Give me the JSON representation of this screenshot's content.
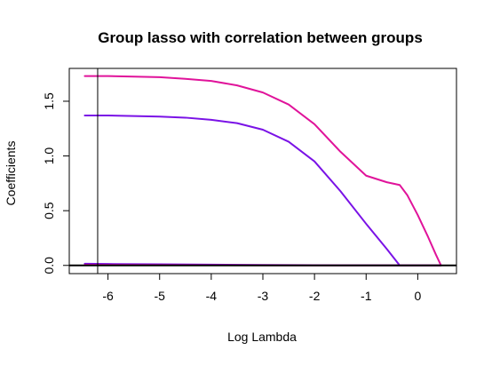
{
  "chart_data": {
    "type": "line",
    "title": "Group lasso with correlation between groups",
    "xlabel": "Log Lambda",
    "ylabel": "Coefficients",
    "xlim": [
      -6.75,
      0.75
    ],
    "ylim": [
      -0.075,
      1.8
    ],
    "x_ticks": [
      -6,
      -5,
      -4,
      -3,
      -2,
      -1,
      0
    ],
    "x_tick_labels": [
      "-6",
      "-5",
      "-4",
      "-3",
      "-2",
      "-1",
      "0"
    ],
    "y_ticks": [
      0.0,
      0.5,
      1.0,
      1.5
    ],
    "y_tick_labels": [
      "0.0",
      "0.5",
      "1.0",
      "1.5"
    ],
    "grid": false,
    "reference_lines": [
      {
        "orientation": "vertical",
        "x": -6.2,
        "color": "#000000"
      },
      {
        "orientation": "horizontal",
        "y": 0,
        "color": "#000000"
      }
    ],
    "series": [
      {
        "color": "#e0139a",
        "x": [
          -6.45,
          -6.0,
          -5.5,
          -5.0,
          -4.5,
          -4.0,
          -3.5,
          -3.0,
          -2.5,
          -2.0,
          -1.5,
          -1.0,
          -0.6,
          -0.35,
          -0.2,
          0.0,
          0.2,
          0.35,
          0.45
        ],
        "y": [
          1.73,
          1.73,
          1.725,
          1.72,
          1.705,
          1.685,
          1.645,
          1.58,
          1.47,
          1.29,
          1.04,
          0.82,
          0.76,
          0.735,
          0.64,
          0.46,
          0.26,
          0.1,
          0.0
        ]
      },
      {
        "color": "#7a12e6",
        "x": [
          -6.45,
          -6.0,
          -5.5,
          -5.0,
          -4.5,
          -4.0,
          -3.5,
          -3.0,
          -2.5,
          -2.0,
          -1.5,
          -1.0,
          -0.6,
          -0.35,
          0.45
        ],
        "y": [
          1.37,
          1.37,
          1.365,
          1.36,
          1.35,
          1.33,
          1.3,
          1.24,
          1.13,
          0.95,
          0.68,
          0.38,
          0.15,
          0.0,
          0.0
        ]
      },
      {
        "color": "#7a12e6",
        "x": [
          -6.45,
          -6.0,
          -5.0,
          -4.0,
          -3.0,
          -2.0,
          -1.0,
          0.0,
          0.45
        ],
        "y": [
          0.015,
          0.013,
          0.01,
          0.007,
          0.004,
          0.002,
          0.001,
          0.0,
          0.0
        ]
      },
      {
        "color": "#e0139a",
        "x": [
          -6.45,
          -6.0,
          -5.0,
          -4.0,
          -3.0,
          -2.0,
          -1.0,
          0.0,
          0.45
        ],
        "y": [
          0.005,
          0.004,
          0.003,
          0.002,
          0.001,
          0.0,
          0.0,
          0.0,
          0.0
        ]
      }
    ]
  }
}
